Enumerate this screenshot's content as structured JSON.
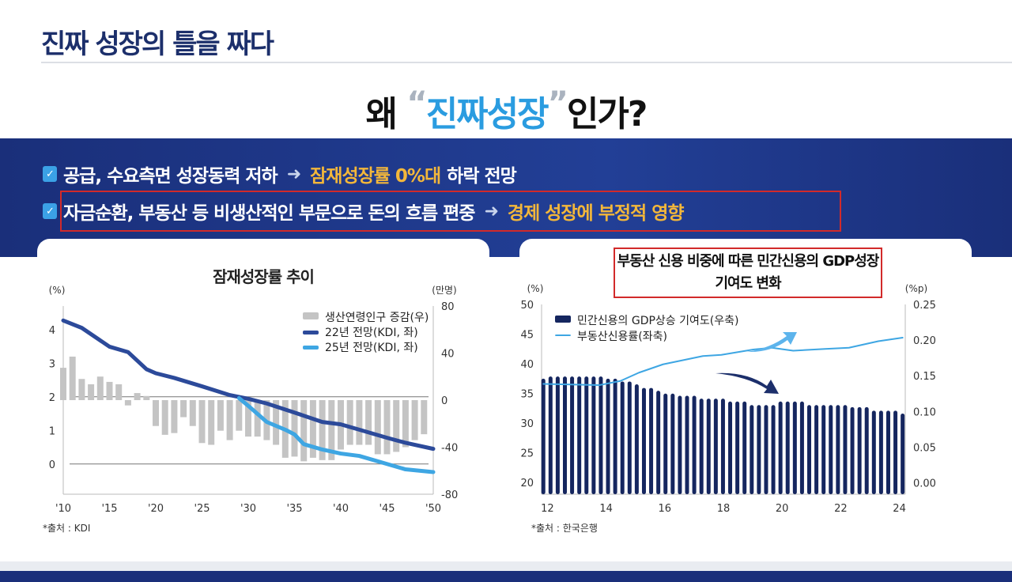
{
  "header": {
    "title": "진짜 성장의 틀을 짜다"
  },
  "headline": {
    "pre": "왜",
    "open_quote": "“",
    "highlight": "진짜성장",
    "close_quote": "”",
    "post": "인가?"
  },
  "bullets": [
    {
      "text": "공급, 수요측면 성장동력 저하",
      "result": "잠재성장률 0%대",
      "result_suffix": "하락 전망"
    },
    {
      "text": "자금순환, 부동산 등 비생산적인 부문으로 돈의 흐름 편중",
      "result": "경제 성장에 부정적 영향",
      "result_suffix": ""
    }
  ],
  "icons": {
    "check": "checkbox-check-icon",
    "arrow": "right-arrow-icon"
  },
  "colors": {
    "navy": "#1c2f6b",
    "accent": "#2a9ce0",
    "gold": "#f3b73a",
    "red_box": "#d22a2a",
    "bar_gray": "#c4c4c4",
    "line_dark": "#2c4a9a",
    "line_light": "#3ea6e3",
    "bar_navy": "#15265f"
  },
  "chart_data": [
    {
      "type": "bar+line",
      "title": "잠재성장률 추이",
      "ylabel_left": "(%)",
      "ylabel_right": "(만명)",
      "ylim_left": [
        -0.9,
        4.7
      ],
      "yticks_left": [
        "4",
        "3",
        "2",
        "1",
        "0"
      ],
      "ylim_right": [
        -80,
        80
      ],
      "yticks_right": [
        "80",
        "40",
        "0",
        "-40",
        "-80"
      ],
      "xlim": [
        2010,
        2050
      ],
      "xticks": [
        "'10",
        "'15",
        "'20",
        "'25",
        "'30",
        "'35",
        "'40",
        "'45",
        "'50"
      ],
      "legend_position": "top-right",
      "series": [
        {
          "name": "생산연령인구 증감(우)",
          "type": "bar",
          "axis": "right",
          "x": [
            2010,
            2011,
            2012,
            2013,
            2014,
            2015,
            2016,
            2017,
            2018,
            2019,
            2020,
            2021,
            2022,
            2023,
            2024,
            2025,
            2026,
            2027,
            2028,
            2029,
            2030,
            2031,
            2032,
            2033,
            2034,
            2035,
            2036,
            2037,
            2038,
            2039,
            2040,
            2041,
            2042,
            2043,
            2044,
            2045,
            2046,
            2047,
            2048,
            2049
          ],
          "values": [
            27.5,
            37,
            18,
            13.5,
            20,
            15.5,
            13.5,
            -4.5,
            6,
            3.5,
            -22,
            -29.5,
            -28,
            -14.5,
            -22,
            -36.5,
            -38,
            -26,
            -34,
            -26,
            -31,
            -31,
            -34,
            -38,
            -49,
            -48,
            -52,
            -49,
            -51,
            -51,
            -42,
            -38,
            -38,
            -38,
            -46,
            -46,
            -44,
            -40,
            -34,
            -29
          ]
        },
        {
          "name": "22년 전망(KDI, 좌)",
          "type": "line",
          "axis": "left",
          "x": [
            2010,
            2012,
            2015,
            2017,
            2019,
            2020,
            2022,
            2025,
            2028,
            2030,
            2032,
            2035,
            2038,
            2040,
            2042,
            2045,
            2047,
            2050
          ],
          "values": [
            4.27,
            4.05,
            3.49,
            3.33,
            2.82,
            2.7,
            2.56,
            2.31,
            2.05,
            1.94,
            1.8,
            1.53,
            1.25,
            1.18,
            1.02,
            0.78,
            0.63,
            0.45
          ]
        },
        {
          "name": "25년 전망(KDI, 좌)",
          "type": "line",
          "axis": "left",
          "x": [
            2029,
            2030,
            2032,
            2034,
            2035,
            2036,
            2038,
            2040,
            2042,
            2045,
            2047,
            2050
          ],
          "values": [
            1.96,
            1.73,
            1.25,
            1.02,
            0.88,
            0.59,
            0.43,
            0.31,
            0.24,
            0.0,
            -0.16,
            -0.24
          ]
        }
      ],
      "source": "*출처 : KDI"
    },
    {
      "type": "bar+line",
      "title": "부동산 신용 비중에 따른 민간신용의 GDP성장 기여도 변화",
      "ylabel_left": "(%)",
      "ylabel_right": "(%p)",
      "ylim_left": [
        18,
        50
      ],
      "yticks_left": [
        "50",
        "45",
        "40",
        "35",
        "30",
        "25",
        "20"
      ],
      "ylim_right": [
        -0.016,
        0.25
      ],
      "yticks_right": [
        "0.25",
        "0.20",
        "0.15",
        "0.10",
        "0.05",
        "0.00"
      ],
      "xlim": [
        11.8,
        24.2
      ],
      "xticks": [
        "12",
        "14",
        "16",
        "18",
        "20",
        "22",
        "24"
      ],
      "legend_position": "top-left",
      "series": [
        {
          "name": "민간신용의 GDP상승 기여도(우축)",
          "type": "bar",
          "axis": "right",
          "values": [
            0.146,
            0.149,
            0.149,
            0.149,
            0.149,
            0.149,
            0.149,
            0.149,
            0.149,
            0.146,
            0.146,
            0.142,
            0.142,
            0.138,
            0.133,
            0.133,
            0.129,
            0.125,
            0.125,
            0.122,
            0.122,
            0.122,
            0.118,
            0.118,
            0.118,
            0.118,
            0.114,
            0.114,
            0.114,
            0.109,
            0.109,
            0.109,
            0.109,
            0.114,
            0.114,
            0.114,
            0.114,
            0.109,
            0.109,
            0.109,
            0.109,
            0.109,
            0.109,
            0.106,
            0.106,
            0.106,
            0.101,
            0.101,
            0.101,
            0.101,
            0.097
          ]
        },
        {
          "name": "부동산신용률(좌축)",
          "type": "line",
          "axis": "left",
          "x": [
            11.86,
            13.77,
            14.49,
            15.12,
            15.94,
            17.3,
            17.93,
            19.02,
            19.65,
            20.38,
            21.47,
            22.28,
            23.28,
            24.11
          ],
          "values": [
            36.6,
            36.4,
            37.1,
            38.5,
            39.9,
            41.3,
            41.5,
            42.4,
            42.7,
            42.2,
            42.5,
            42.7,
            43.8,
            44.4
          ]
        }
      ],
      "source": "*출처 : 한국은행"
    }
  ]
}
